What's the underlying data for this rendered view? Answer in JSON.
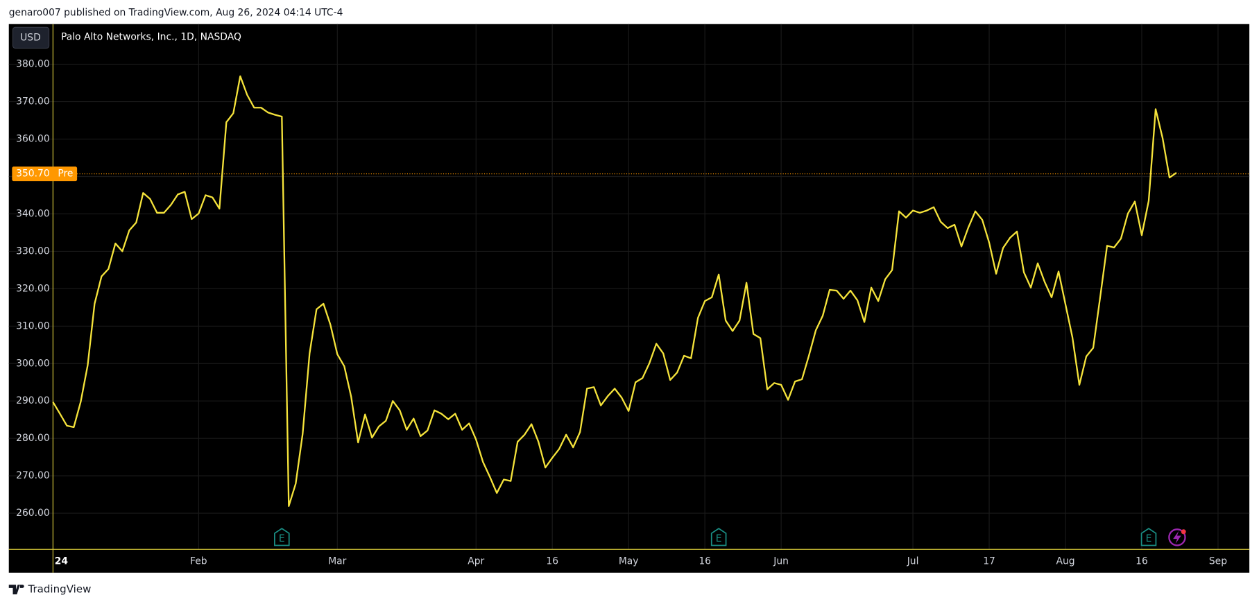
{
  "header": {
    "published": "genaro007 published on TradingView.com, Aug 26, 2024 04:14 UTC-4",
    "currency": "USD"
  },
  "footer": {
    "brand": "TradingView"
  },
  "chart_data": {
    "type": "line",
    "grid": true,
    "categories": [
      "24",
      null,
      null,
      null,
      null,
      null,
      null,
      null,
      null,
      null,
      null,
      null,
      null,
      null,
      null,
      null,
      null,
      null,
      null,
      null,
      null,
      "Feb",
      null,
      null,
      null,
      null,
      null,
      null,
      null,
      null,
      null,
      null,
      null,
      null,
      null,
      null,
      null,
      null,
      null,
      null,
      null,
      "Mar",
      null,
      null,
      null,
      null,
      null,
      null,
      null,
      null,
      null,
      null,
      null,
      null,
      null,
      null,
      null,
      null,
      null,
      null,
      null,
      "Apr",
      null,
      null,
      null,
      null,
      null,
      null,
      null,
      null,
      null,
      null,
      "16",
      null,
      null,
      null,
      null,
      null,
      null,
      null,
      null,
      null,
      null,
      "May",
      null,
      null,
      null,
      null,
      null,
      null,
      null,
      null,
      null,
      null,
      "16",
      null,
      null,
      null,
      null,
      null,
      null,
      null,
      null,
      null,
      null,
      "Jun",
      null,
      null,
      null,
      null,
      null,
      null,
      null,
      null,
      null,
      null,
      null,
      null,
      null,
      null,
      null,
      null,
      null,
      null,
      "Jul",
      null,
      null,
      null,
      null,
      null,
      null,
      null,
      null,
      null,
      null,
      "17",
      null,
      null,
      null,
      null,
      null,
      null,
      null,
      null,
      null,
      null,
      "Aug",
      null,
      null,
      null,
      null,
      null,
      null,
      null,
      null,
      null,
      null,
      "16",
      null,
      null,
      null,
      null,
      null,
      null,
      null,
      null,
      null,
      null,
      "Sep"
    ],
    "series": [
      {
        "name": "Palo Alto Networks, Inc., 1D, NASDAQ",
        "color": "#f5e33b",
        "values": [
          289.7,
          286.6,
          283.4,
          283.0,
          289.8,
          299.5,
          316.0,
          323.3,
          325.3,
          332.1,
          330.0,
          335.6,
          337.7,
          345.6,
          344.0,
          340.3,
          340.3,
          342.4,
          345.2,
          345.9,
          338.6,
          340.1,
          345.0,
          344.4,
          341.4,
          364.5,
          366.9,
          376.8,
          371.8,
          368.4,
          368.4,
          367.1,
          366.5,
          366.0,
          261.9,
          267.9,
          281.2,
          302.7,
          314.5,
          316.0,
          310.4,
          302.5,
          299.3,
          291.1,
          278.9,
          286.4,
          280.2,
          283.2,
          284.7,
          290.0,
          287.5,
          282.3,
          285.3,
          280.6,
          282.1,
          287.5,
          286.6,
          285.1,
          286.6,
          282.3,
          284.0,
          279.7,
          273.7,
          269.7,
          265.4,
          269.0,
          268.6,
          279.1,
          281.0,
          283.8,
          279.1,
          272.2,
          274.8,
          277.2,
          281.0,
          277.6,
          281.7,
          293.3,
          293.7,
          288.8,
          291.3,
          293.3,
          290.9,
          287.3,
          295.0,
          296.1,
          300.1,
          305.3,
          302.7,
          295.6,
          297.6,
          302.1,
          301.4,
          312.2,
          316.7,
          317.7,
          323.8,
          311.5,
          308.7,
          311.5,
          321.6,
          307.9,
          306.8,
          293.1,
          294.8,
          294.3,
          290.3,
          295.2,
          295.8,
          302.1,
          308.9,
          312.8,
          319.7,
          319.5,
          317.3,
          319.5,
          316.9,
          311.1,
          320.3,
          316.7,
          322.5,
          325.0,
          340.7,
          339.0,
          340.9,
          340.3,
          340.9,
          341.8,
          337.9,
          336.2,
          337.1,
          331.3,
          336.4,
          340.7,
          338.4,
          332.3,
          324.0,
          330.9,
          333.6,
          335.3,
          324.4,
          320.3,
          326.8,
          321.8,
          317.7,
          324.6,
          315.8,
          307.0,
          294.3,
          301.9,
          304.2,
          317.7,
          331.5,
          331.0,
          333.4,
          340.1,
          343.3,
          334.3,
          343.5,
          368.0,
          360.3,
          349.7,
          351.0,
          null,
          null,
          null,
          null,
          null,
          null
        ]
      }
    ],
    "ylim": [
      250.33,
      390.73
    ],
    "yticks": [
      {
        "value": 260,
        "label": "260.00"
      },
      {
        "value": 270,
        "label": "270.00"
      },
      {
        "value": 280,
        "label": "280.00"
      },
      {
        "value": 290,
        "label": "290.00"
      },
      {
        "value": 300,
        "label": "300.00"
      },
      {
        "value": 310,
        "label": "310.00"
      },
      {
        "value": 320,
        "label": "320.00"
      },
      {
        "value": 330,
        "label": "330.00"
      },
      {
        "value": 340,
        "label": "340.00"
      },
      {
        "value": 350,
        "label": "350.00"
      },
      {
        "value": 360,
        "label": "360.00"
      },
      {
        "value": 370,
        "label": "370.00"
      },
      {
        "value": 380,
        "label": "380.00"
      }
    ],
    "price_line": {
      "value": 350.7,
      "label": "350.70",
      "tag": "Pre",
      "color": "#ff9800"
    },
    "earnings_label": "E"
  }
}
